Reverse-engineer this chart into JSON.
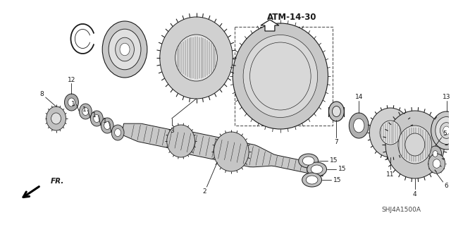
{
  "bg_color": "#ffffff",
  "fig_width": 6.4,
  "fig_height": 3.19,
  "dpi": 100,
  "label_atm": "ATM-14-30",
  "label_fr": "FR.",
  "label_catalog": "SHJ4A1500A",
  "line_color": "#1a1a1a",
  "text_color": "#1a1a1a",
  "gray_fill": "#d0d0d0",
  "dark_fill": "#888888",
  "mid_fill": "#b0b0b0"
}
